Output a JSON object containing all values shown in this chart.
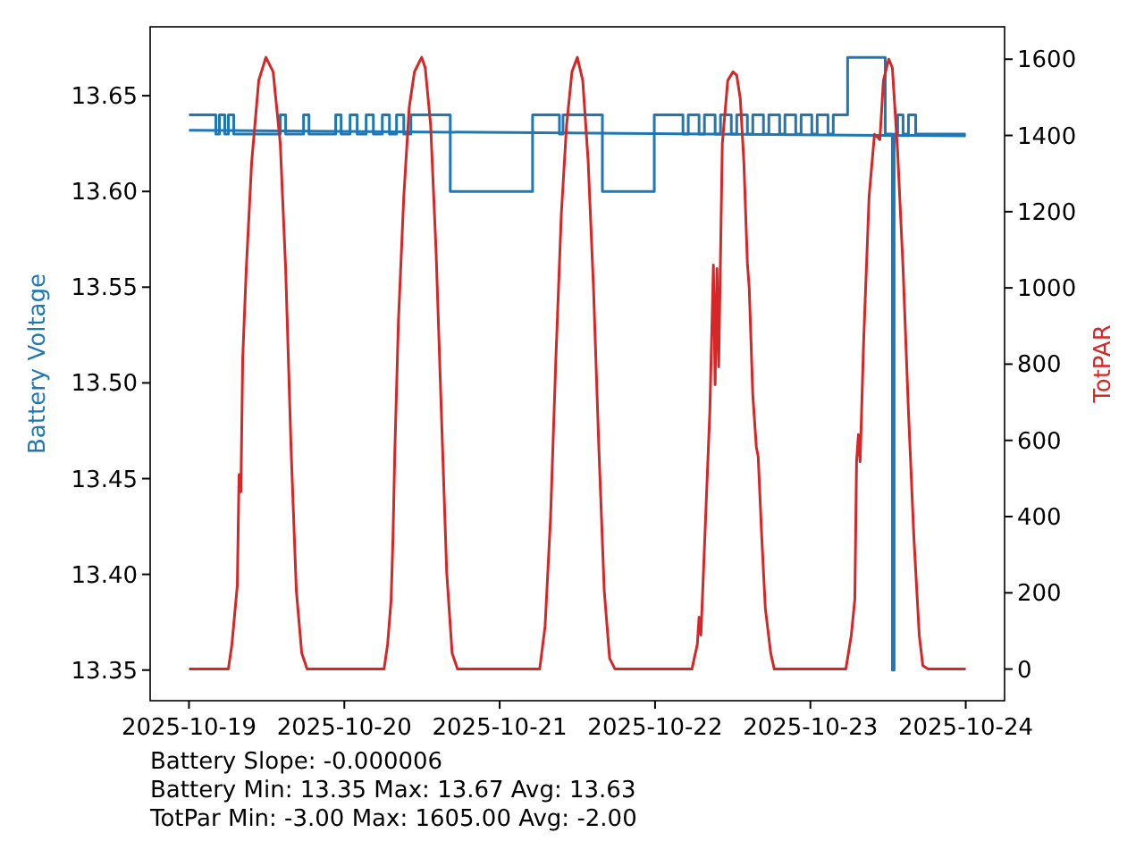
{
  "chart_data": {
    "type": "line",
    "ylabel": "Battery Voltage",
    "y2label": "TotPAR",
    "xlim": [
      "2025-10-18T18:00",
      "2025-10-24T06:00"
    ],
    "xticks": [
      "2025-10-19",
      "2025-10-20",
      "2025-10-21",
      "2025-10-22",
      "2025-10-23",
      "2025-10-24"
    ],
    "ylim": [
      13.334,
      13.686
    ],
    "yticks": [
      {
        "value": 13.35,
        "label": "13.35"
      },
      {
        "value": 13.4,
        "label": "13.40"
      },
      {
        "value": 13.45,
        "label": "13.45"
      },
      {
        "value": 13.5,
        "label": "13.50"
      },
      {
        "value": 13.55,
        "label": "13.55"
      },
      {
        "value": 13.6,
        "label": "13.60"
      },
      {
        "value": 13.65,
        "label": "13.65"
      }
    ],
    "y2lim": [
      -83,
      1685
    ],
    "y2ticks": [
      0,
      200,
      400,
      600,
      800,
      1000,
      1200,
      1400,
      1600
    ],
    "grid": false,
    "annotations": [
      "Battery Slope: -0.000006",
      "Battery Min: 13.35 Max: 13.67 Avg: 13.63",
      "TotPar Min: -3.00 Max: 1605.00 Avg: -2.00"
    ],
    "series": [
      {
        "type": "step",
        "color": "#1f77b4",
        "x": [
          "2025-10-19T00:00",
          "2025-10-19T04:09",
          "2025-10-19T04:42",
          "2025-10-19T05:32",
          "2025-10-19T06:05",
          "2025-10-19T06:55",
          "2025-10-19T14:06",
          "2025-10-19T14:56",
          "2025-10-19T17:42",
          "2025-10-19T18:32",
          "2025-10-19T22:40",
          "2025-10-19T23:30",
          "2025-10-20T00:53",
          "2025-10-20T01:59",
          "2025-10-20T03:22",
          "2025-10-20T04:29",
          "2025-10-20T05:52",
          "2025-10-20T06:58",
          "2025-10-20T08:04",
          "2025-10-20T09:11",
          "2025-10-20T10:17",
          "2025-10-20T16:22",
          "2025-10-21T05:05",
          "2025-10-21T09:14",
          "2025-10-21T09:47",
          "2025-10-21T15:52",
          "2025-10-21T23:53",
          "2025-10-22T04:19",
          "2025-10-22T05:08",
          "2025-10-22T06:48",
          "2025-10-22T07:38",
          "2025-10-22T09:17",
          "2025-10-22T10:07",
          "2025-10-22T11:47",
          "2025-10-22T12:37",
          "2025-10-22T14:16",
          "2025-10-22T15:06",
          "2025-10-22T16:45",
          "2025-10-22T17:35",
          "2025-10-22T19:15",
          "2025-10-22T20:04",
          "2025-10-22T21:44",
          "2025-10-22T22:34",
          "2025-10-23T00:13",
          "2025-10-23T01:03",
          "2025-10-23T02:43",
          "2025-10-23T03:32",
          "2025-10-23T05:45",
          "2025-10-23T11:34",
          "2025-10-23T12:40",
          "2025-10-23T12:56",
          "2025-10-23T13:29",
          "2025-10-23T14:19",
          "2025-10-23T15:09",
          "2025-10-23T16:16",
          "2025-10-24T00:00"
        ],
        "values": [
          13.64,
          13.63,
          13.64,
          13.63,
          13.64,
          13.63,
          13.64,
          13.63,
          13.64,
          13.63,
          13.64,
          13.63,
          13.64,
          13.63,
          13.64,
          13.63,
          13.64,
          13.63,
          13.64,
          13.63,
          13.64,
          13.6,
          13.64,
          13.63,
          13.64,
          13.6,
          13.64,
          13.63,
          13.64,
          13.63,
          13.64,
          13.63,
          13.64,
          13.63,
          13.64,
          13.63,
          13.64,
          13.63,
          13.64,
          13.63,
          13.64,
          13.63,
          13.64,
          13.63,
          13.64,
          13.63,
          13.64,
          13.67,
          13.63,
          13.35,
          13.63,
          13.64,
          13.63,
          13.64,
          13.63,
          13.63
        ]
      },
      {
        "color": "#1f77b4",
        "x": [
          "2025-10-19T00:00",
          "2025-10-24T00:00"
        ],
        "values": [
          13.632,
          13.629
        ]
      },
      {
        "color": "#d62728",
        "axis": "y2",
        "x": [
          "2025-10-19T00:00",
          "2025-10-19T06:05",
          "2025-10-19T06:38",
          "2025-10-19T07:28",
          "2025-10-19T07:44",
          "2025-10-19T08:01",
          "2025-10-19T08:18",
          "2025-10-19T08:51",
          "2025-10-19T09:41",
          "2025-10-19T10:47",
          "2025-10-19T11:53",
          "2025-10-19T13:00",
          "2025-10-19T14:06",
          "2025-10-19T14:56",
          "2025-10-19T15:46",
          "2025-10-19T16:35",
          "2025-10-19T17:25",
          "2025-10-19T18:15",
          "2025-10-20T06:08",
          "2025-10-20T06:41",
          "2025-10-20T07:14",
          "2025-10-20T07:31",
          "2025-10-20T07:48",
          "2025-10-20T08:21",
          "2025-10-20T09:11",
          "2025-10-20T10:01",
          "2025-10-20T10:50",
          "2025-10-20T11:23",
          "2025-10-20T11:57",
          "2025-10-20T12:30",
          "2025-10-20T13:20",
          "2025-10-20T14:10",
          "2025-10-20T14:59",
          "2025-10-20T15:49",
          "2025-10-20T16:39",
          "2025-10-20T17:29",
          "2025-10-21T06:11",
          "2025-10-21T07:01",
          "2025-10-21T07:51",
          "2025-10-21T08:41",
          "2025-10-21T09:31",
          "2025-10-21T10:20",
          "2025-10-21T11:10",
          "2025-10-21T12:00",
          "2025-10-21T12:50",
          "2025-10-21T13:40",
          "2025-10-21T14:29",
          "2025-10-21T15:19",
          "2025-10-21T16:09",
          "2025-10-21T16:59",
          "2025-10-21T17:49",
          "2025-10-22T05:42",
          "2025-10-22T06:32",
          "2025-10-22T06:48",
          "2025-10-22T07:05",
          "2025-10-22T07:22",
          "2025-10-22T07:55",
          "2025-10-22T08:28",
          "2025-10-22T09:01",
          "2025-10-22T09:17",
          "2025-10-22T09:34",
          "2025-10-22T09:50",
          "2025-10-22T10:24",
          "2025-10-22T11:14",
          "2025-10-22T12:03",
          "2025-10-22T12:37",
          "2025-10-22T13:10",
          "2025-10-22T13:43",
          "2025-10-22T14:16",
          "2025-10-22T14:33",
          "2025-10-22T15:06",
          "2025-10-22T15:39",
          "2025-10-22T15:56",
          "2025-10-22T16:29",
          "2025-10-22T17:02",
          "2025-10-22T17:52",
          "2025-10-22T18:25",
          "2025-10-23T05:29",
          "2025-10-23T06:19",
          "2025-10-23T06:52",
          "2025-10-23T07:08",
          "2025-10-23T07:25",
          "2025-10-23T07:41",
          "2025-10-23T08:14",
          "2025-10-23T09:04",
          "2025-10-23T09:54",
          "2025-10-23T10:44",
          "2025-10-23T11:17",
          "2025-10-23T11:50",
          "2025-10-23T12:07",
          "2025-10-23T12:40",
          "2025-10-23T13:29",
          "2025-10-23T14:19",
          "2025-10-23T15:09",
          "2025-10-23T15:59",
          "2025-10-23T16:49",
          "2025-10-23T17:22",
          "2025-10-23T18:11",
          "2025-10-24T00:00"
        ],
        "values": [
          0,
          0,
          65,
          220,
          510,
          465,
          816,
          1050,
          1330,
          1545,
          1605,
          1567,
          1380,
          1050,
          580,
          206,
          42,
          0,
          0,
          65,
          183,
          347,
          572,
          910,
          1239,
          1473,
          1567,
          1586,
          1605,
          1577,
          1427,
          1098,
          676,
          253,
          42,
          0,
          0,
          113,
          394,
          816,
          1192,
          1427,
          1567,
          1605,
          1544,
          1333,
          1004,
          582,
          206,
          28,
          0,
          0,
          65,
          136,
          89,
          206,
          441,
          676,
          1060,
          746,
          1051,
          793,
          1380,
          1544,
          1567,
          1558,
          1497,
          1333,
          1065,
          1000,
          720,
          582,
          558,
          347,
          160,
          42,
          0,
          0,
          89,
          183,
          544,
          615,
          544,
          863,
          1239,
          1403,
          1389,
          1544,
          1582,
          1600,
          1577,
          1356,
          1051,
          676,
          347,
          89,
          9,
          0,
          0
        ]
      }
    ]
  }
}
